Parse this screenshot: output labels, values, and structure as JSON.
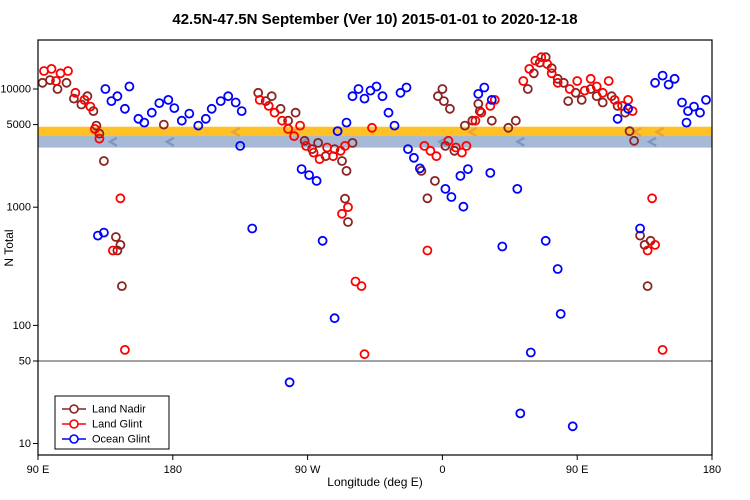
{
  "chart_data": {
    "type": "scatter",
    "title": "42.5N-47.5N September (Ver 10)   2015-01-01 to 2020-12-18",
    "xlabel": "Longitude (deg E)",
    "ylabel": "N Total",
    "x_axis": {
      "range": [
        90,
        540
      ],
      "ticks": [
        {
          "v": 90,
          "label": "90 E"
        },
        {
          "v": 180,
          "label": "180"
        },
        {
          "v": 270,
          "label": "90 W"
        },
        {
          "v": 360,
          "label": "0"
        },
        {
          "v": 450,
          "label": "90 E"
        },
        {
          "v": 540,
          "label": "180"
        }
      ]
    },
    "y_axis": {
      "scale": "log",
      "range": [
        8,
        26000
      ],
      "ticks": [
        {
          "v": 10,
          "label": "10"
        },
        {
          "v": 50,
          "label": "50"
        },
        {
          "v": 100,
          "label": "100"
        },
        {
          "v": 1000,
          "label": "1000"
        },
        {
          "v": 5000,
          "label": "5000"
        },
        {
          "v": 10000,
          "label": "10000"
        }
      ]
    },
    "reference_line": {
      "y": 50,
      "color": "#444444"
    },
    "bands": [
      {
        "name": "land-climatology-band",
        "color": "#FFC125",
        "y_from": 3900,
        "y_to": 4800,
        "chevron_color": "#E8A33A",
        "chevrons": [
          128,
          222,
          262,
          380,
          490,
          505
        ]
      },
      {
        "name": "ocean-climatology-band",
        "color": "#A6BAD8",
        "y_from": 3200,
        "y_to": 4000,
        "chevron_color": "#7E97C0",
        "chevrons": [
          140,
          178,
          268,
          360,
          412,
          500
        ]
      }
    ],
    "series": [
      {
        "name": "Land Nadir",
        "color": "#8B2323",
        "points": [
          [
            93,
            11300
          ],
          [
            98,
            11900
          ],
          [
            103,
            10000
          ],
          [
            109,
            11300
          ],
          [
            114,
            8300
          ],
          [
            119,
            7400
          ],
          [
            123,
            8700
          ],
          [
            127,
            6500
          ],
          [
            129,
            4900
          ],
          [
            131,
            4200
          ],
          [
            134,
            2460
          ],
          [
            142,
            560
          ],
          [
            145,
            480
          ],
          [
            143,
            430
          ],
          [
            146,
            215
          ],
          [
            174,
            5000
          ],
          [
            237,
            9300
          ],
          [
            242,
            7900
          ],
          [
            246,
            8700
          ],
          [
            252,
            6800
          ],
          [
            257,
            5400
          ],
          [
            262,
            6300
          ],
          [
            268,
            3650
          ],
          [
            273,
            3100
          ],
          [
            277,
            3500
          ],
          [
            282,
            2700
          ],
          [
            288,
            3100
          ],
          [
            293,
            2460
          ],
          [
            296,
            2030
          ],
          [
            300,
            3500
          ],
          [
            295,
            1180
          ],
          [
            297,
            750
          ],
          [
            346,
            2030
          ],
          [
            350,
            1190
          ],
          [
            355,
            1670
          ],
          [
            357,
            8700
          ],
          [
            360,
            10000
          ],
          [
            361,
            7900
          ],
          [
            365,
            6800
          ],
          [
            362,
            3300
          ],
          [
            368,
            3000
          ],
          [
            375,
            4900
          ],
          [
            380,
            5400
          ],
          [
            384,
            7500
          ],
          [
            385,
            6500
          ],
          [
            393,
            5400
          ],
          [
            404,
            4700
          ],
          [
            409,
            5400
          ],
          [
            417,
            10000
          ],
          [
            421,
            13600
          ],
          [
            425,
            16700
          ],
          [
            429,
            18600
          ],
          [
            433,
            15000
          ],
          [
            437,
            12200
          ],
          [
            441,
            11300
          ],
          [
            444,
            7900
          ],
          [
            449,
            9300
          ],
          [
            453,
            8100
          ],
          [
            459,
            10000
          ],
          [
            463,
            8700
          ],
          [
            467,
            7700
          ],
          [
            473,
            8700
          ],
          [
            477,
            7200
          ],
          [
            482,
            6300
          ],
          [
            485,
            4400
          ],
          [
            488,
            3650
          ],
          [
            492,
            575
          ],
          [
            495,
            480
          ],
          [
            499,
            520
          ],
          [
            497,
            215
          ]
        ]
      },
      {
        "name": "Land Glint",
        "color": "#FF0000",
        "points": [
          [
            94,
            14200
          ],
          [
            99,
            14800
          ],
          [
            105,
            13600
          ],
          [
            110,
            14200
          ],
          [
            102,
            11700
          ],
          [
            115,
            9300
          ],
          [
            121,
            8100
          ],
          [
            125,
            7100
          ],
          [
            128,
            4600
          ],
          [
            131,
            3800
          ],
          [
            145,
            1190
          ],
          [
            140,
            430
          ],
          [
            148,
            62
          ],
          [
            238,
            8100
          ],
          [
            244,
            7200
          ],
          [
            248,
            6300
          ],
          [
            253,
            5400
          ],
          [
            257,
            4600
          ],
          [
            261,
            4000
          ],
          [
            265,
            4900
          ],
          [
            269,
            3300
          ],
          [
            274,
            2900
          ],
          [
            278,
            2550
          ],
          [
            283,
            3200
          ],
          [
            287,
            2700
          ],
          [
            292,
            3000
          ],
          [
            295,
            3300
          ],
          [
            293,
            880
          ],
          [
            297,
            1000
          ],
          [
            302,
            235
          ],
          [
            306,
            215
          ],
          [
            308,
            57
          ],
          [
            313,
            4700
          ],
          [
            348,
            3300
          ],
          [
            352,
            3000
          ],
          [
            356,
            2700
          ],
          [
            350,
            430
          ],
          [
            364,
            3650
          ],
          [
            369,
            3200
          ],
          [
            373,
            2900
          ],
          [
            376,
            3300
          ],
          [
            382,
            5400
          ],
          [
            386,
            6300
          ],
          [
            392,
            7200
          ],
          [
            395,
            8100
          ],
          [
            414,
            11700
          ],
          [
            418,
            14800
          ],
          [
            422,
            17400
          ],
          [
            426,
            18600
          ],
          [
            430,
            16300
          ],
          [
            433,
            13600
          ],
          [
            437,
            11300
          ],
          [
            445,
            10000
          ],
          [
            450,
            11700
          ],
          [
            455,
            9700
          ],
          [
            459,
            12200
          ],
          [
            463,
            10500
          ],
          [
            467,
            9300
          ],
          [
            471,
            11700
          ],
          [
            475,
            8100
          ],
          [
            480,
            7200
          ],
          [
            484,
            8100
          ],
          [
            487,
            6500
          ],
          [
            500,
            1190
          ],
          [
            497,
            430
          ],
          [
            502,
            480
          ],
          [
            507,
            62
          ]
        ]
      },
      {
        "name": "Ocean Glint",
        "color": "#0000FF",
        "points": [
          [
            135,
            10000
          ],
          [
            139,
            7900
          ],
          [
            143,
            8700
          ],
          [
            148,
            6800
          ],
          [
            130,
            575
          ],
          [
            134,
            610
          ],
          [
            151,
            10500
          ],
          [
            157,
            5600
          ],
          [
            161,
            5200
          ],
          [
            166,
            6300
          ],
          [
            171,
            7600
          ],
          [
            177,
            8100
          ],
          [
            181,
            6900
          ],
          [
            186,
            5400
          ],
          [
            191,
            6200
          ],
          [
            197,
            4900
          ],
          [
            202,
            5600
          ],
          [
            206,
            6800
          ],
          [
            212,
            7900
          ],
          [
            217,
            8700
          ],
          [
            222,
            7700
          ],
          [
            226,
            6500
          ],
          [
            225,
            3300
          ],
          [
            233,
            660
          ],
          [
            266,
            2100
          ],
          [
            271,
            1870
          ],
          [
            276,
            1670
          ],
          [
            280,
            520
          ],
          [
            288,
            115
          ],
          [
            290,
            4400
          ],
          [
            296,
            5200
          ],
          [
            300,
            8700
          ],
          [
            304,
            10000
          ],
          [
            308,
            8300
          ],
          [
            312,
            9700
          ],
          [
            316,
            10500
          ],
          [
            320,
            8700
          ],
          [
            324,
            6300
          ],
          [
            328,
            4900
          ],
          [
            332,
            9300
          ],
          [
            336,
            10300
          ],
          [
            337,
            3100
          ],
          [
            341,
            2620
          ],
          [
            345,
            2130
          ],
          [
            362,
            1430
          ],
          [
            366,
            1220
          ],
          [
            372,
            1840
          ],
          [
            377,
            2100
          ],
          [
            374,
            1010
          ],
          [
            384,
            9100
          ],
          [
            388,
            10300
          ],
          [
            393,
            8100
          ],
          [
            392,
            1950
          ],
          [
            400,
            465
          ],
          [
            410,
            1430
          ],
          [
            412,
            18
          ],
          [
            419,
            59
          ],
          [
            429,
            520
          ],
          [
            437,
            300
          ],
          [
            439,
            125
          ],
          [
            447,
            14
          ],
          [
            477,
            5600
          ],
          [
            484,
            6800
          ],
          [
            492,
            660
          ],
          [
            502,
            11300
          ],
          [
            507,
            13000
          ],
          [
            511,
            10900
          ],
          [
            515,
            12200
          ],
          [
            520,
            7700
          ],
          [
            524,
            6500
          ],
          [
            528,
            7100
          ],
          [
            532,
            6300
          ],
          [
            536,
            8100
          ],
          [
            523,
            5200
          ],
          [
            258,
            33
          ]
        ]
      }
    ],
    "legend": {
      "position": "bottom-left",
      "entries": [
        "Land Nadir",
        "Land Glint",
        "Ocean Glint"
      ]
    }
  }
}
